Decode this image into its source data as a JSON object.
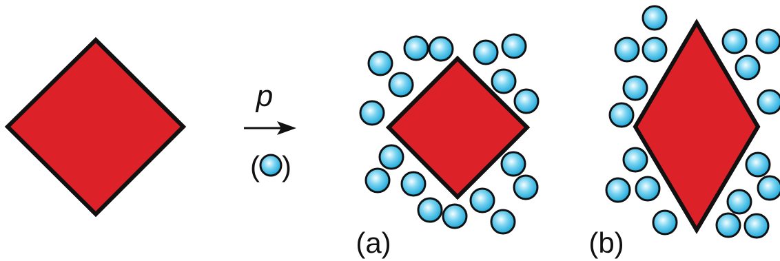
{
  "labels": {
    "pressure": "p",
    "particle_open": "(",
    "particle_close": ")",
    "panel_a": "(a)",
    "panel_b": "(b)"
  },
  "colors": {
    "shape_fill": "#dc2228",
    "shape_stroke": "#111111",
    "particle_edge": "#111111",
    "particle_center": "#f4fdff",
    "particle_mid": "#78d3f0",
    "particle_outer": "#1aa6d9",
    "arrow": "#111111"
  }
}
